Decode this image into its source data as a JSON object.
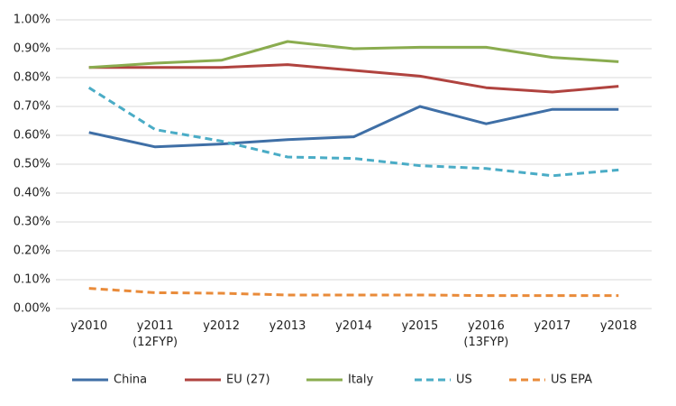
{
  "chart_data": {
    "type": "line",
    "categories": [
      "y2010",
      "y2011\n(12FYP)",
      "y2012",
      "y2013",
      "y2014",
      "y2015",
      "y2016\n(13FYP)",
      "y2017",
      "y2018"
    ],
    "series": [
      {
        "name": "China",
        "color": "#3f6fa6",
        "dashed": false,
        "values": [
          0.61,
          0.56,
          0.57,
          0.585,
          0.595,
          0.7,
          0.64,
          0.69,
          0.69
        ]
      },
      {
        "name": "EU (27)",
        "color": "#b0433f",
        "dashed": false,
        "values": [
          0.835,
          0.835,
          0.835,
          0.845,
          0.825,
          0.805,
          0.765,
          0.75,
          0.77
        ]
      },
      {
        "name": "Italy",
        "color": "#8aac4f",
        "dashed": false,
        "values": [
          0.835,
          0.85,
          0.86,
          0.925,
          0.9,
          0.905,
          0.905,
          0.87,
          0.855
        ]
      },
      {
        "name": "US",
        "color": "#4aacc6",
        "dashed": true,
        "values": [
          0.765,
          0.62,
          0.58,
          0.525,
          0.52,
          0.495,
          0.485,
          0.46,
          0.48
        ]
      },
      {
        "name": "US EPA",
        "color": "#e98b3a",
        "dashed": true,
        "values": [
          0.07,
          0.055,
          0.053,
          0.047,
          0.047,
          0.047,
          0.045,
          0.045,
          0.045
        ]
      }
    ],
    "ylim": [
      0,
      1
    ],
    "yticks": [
      {
        "value": 0,
        "label": "0.00%"
      },
      {
        "value": 0.1,
        "label": "0.10%"
      },
      {
        "value": 0.2,
        "label": "0.20%"
      },
      {
        "value": 0.3,
        "label": "0.30%"
      },
      {
        "value": 0.4,
        "label": "0.40%"
      },
      {
        "value": 0.5,
        "label": "0.50%"
      },
      {
        "value": 0.6,
        "label": "0.60%"
      },
      {
        "value": 0.7,
        "label": "0.70%"
      },
      {
        "value": 0.8,
        "label": "0.80%"
      },
      {
        "value": 0.9,
        "label": "0.90%"
      },
      {
        "value": 1,
        "label": "1.00%"
      }
    ],
    "grid": true,
    "legend": "bottom"
  }
}
